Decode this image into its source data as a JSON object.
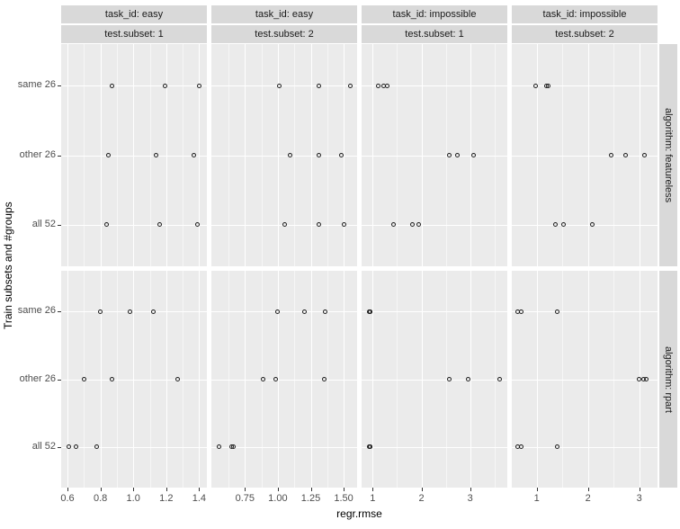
{
  "colors": {
    "strip_bg": "#d9d9d9",
    "panel_bg": "#ebebeb",
    "gridline": "#ffffff",
    "point_stroke": "#1f1f1f",
    "tick_label": "#4d4d4d",
    "strip_text": "#1a1a1a",
    "axis_title": "#000000"
  },
  "chart_data": {
    "type": "scatter",
    "title": "",
    "xlabel": "regr.rmse",
    "ylabel": "Train subsets and #groups",
    "legend": "none",
    "grid": "major+minor",
    "point_style": "open-circle",
    "y_categories": [
      "same 26",
      "other 26",
      "all 52"
    ],
    "facet_row_strips": [
      "algorithm: featureless",
      "algorithm: rpart"
    ],
    "facet_col_strips": [
      {
        "task": "task_id: easy",
        "subset": "test.subset: 1"
      },
      {
        "task": "task_id: easy",
        "subset": "test.subset: 2"
      },
      {
        "task": "task_id: impossible",
        "subset": "test.subset: 1"
      },
      {
        "task": "task_id: impossible",
        "subset": "test.subset: 2"
      }
    ],
    "x_axes": [
      {
        "tick_labels": [
          "0.6",
          "0.8",
          "1.0",
          "1.2",
          "1.4"
        ],
        "tick_values": [
          0.6,
          0.8,
          1.0,
          1.2,
          1.4
        ],
        "xlim": [
          0.562,
          1.447
        ]
      },
      {
        "tick_labels": [
          "0.75",
          "1.00",
          "1.25",
          "1.50"
        ],
        "tick_values": [
          0.75,
          1.0,
          1.25,
          1.5
        ],
        "xlim": [
          0.495,
          1.602
        ]
      },
      {
        "tick_labels": [
          "1",
          "2",
          "3"
        ],
        "tick_values": [
          1,
          2,
          3
        ],
        "xlim": [
          0.773,
          3.762
        ]
      },
      {
        "tick_labels": [
          "1",
          "2",
          "3"
        ],
        "tick_values": [
          1,
          2,
          3
        ],
        "xlim": [
          0.514,
          3.356
        ]
      }
    ],
    "panels": [
      {
        "row": 0,
        "col": 0,
        "algorithm": "featureless",
        "task": "easy",
        "subset": "1",
        "points": {
          "same 26": [
            0.87,
            1.19,
            1.4
          ],
          "other 26": [
            0.85,
            1.14,
            1.37
          ],
          "all 52": [
            0.84,
            1.16,
            1.39
          ]
        }
      },
      {
        "row": 0,
        "col": 1,
        "algorithm": "featureless",
        "task": "easy",
        "subset": "2",
        "points": {
          "same 26": [
            1.01,
            1.31,
            1.55
          ],
          "other 26": [
            1.09,
            1.31,
            1.48
          ],
          "all 52": [
            1.05,
            1.31,
            1.5
          ]
        }
      },
      {
        "row": 0,
        "col": 2,
        "algorithm": "featureless",
        "task": "impossible",
        "subset": "1",
        "points": {
          "same 26": [
            1.11,
            1.23,
            1.3
          ],
          "other 26": [
            2.57,
            2.74,
            3.07
          ],
          "all 52": [
            1.42,
            1.81,
            1.94
          ]
        }
      },
      {
        "row": 0,
        "col": 3,
        "algorithm": "featureless",
        "task": "impossible",
        "subset": "2",
        "points": {
          "same 26": [
            0.97,
            1.18,
            1.23
          ],
          "other 26": [
            2.45,
            2.74,
            3.1
          ],
          "all 52": [
            1.36,
            1.53,
            2.09
          ]
        }
      },
      {
        "row": 1,
        "col": 0,
        "algorithm": "rpart",
        "task": "easy",
        "subset": "1",
        "points": {
          "same 26": [
            0.8,
            0.98,
            1.12
          ],
          "other 26": [
            0.7,
            0.87,
            1.27
          ],
          "all 52": [
            0.61,
            0.65,
            0.78
          ]
        }
      },
      {
        "row": 1,
        "col": 1,
        "algorithm": "rpart",
        "task": "easy",
        "subset": "2",
        "points": {
          "same 26": [
            1.0,
            1.2,
            1.36
          ],
          "other 26": [
            0.89,
            0.98,
            1.35
          ],
          "all 52": [
            0.55,
            0.65,
            0.66
          ]
        }
      },
      {
        "row": 1,
        "col": 2,
        "algorithm": "rpart",
        "task": "impossible",
        "subset": "1",
        "points": {
          "same 26": [
            0.92,
            0.94,
            0.95
          ],
          "other 26": [
            2.58,
            2.95,
            3.6
          ],
          "all 52": [
            0.92,
            0.94,
            0.95
          ]
        }
      },
      {
        "row": 1,
        "col": 3,
        "algorithm": "rpart",
        "task": "impossible",
        "subset": "2",
        "points": {
          "same 26": [
            0.62,
            0.7,
            1.4
          ],
          "other 26": [
            2.99,
            3.08,
            3.13
          ],
          "all 52": [
            0.62,
            0.7,
            1.4
          ]
        }
      }
    ]
  }
}
